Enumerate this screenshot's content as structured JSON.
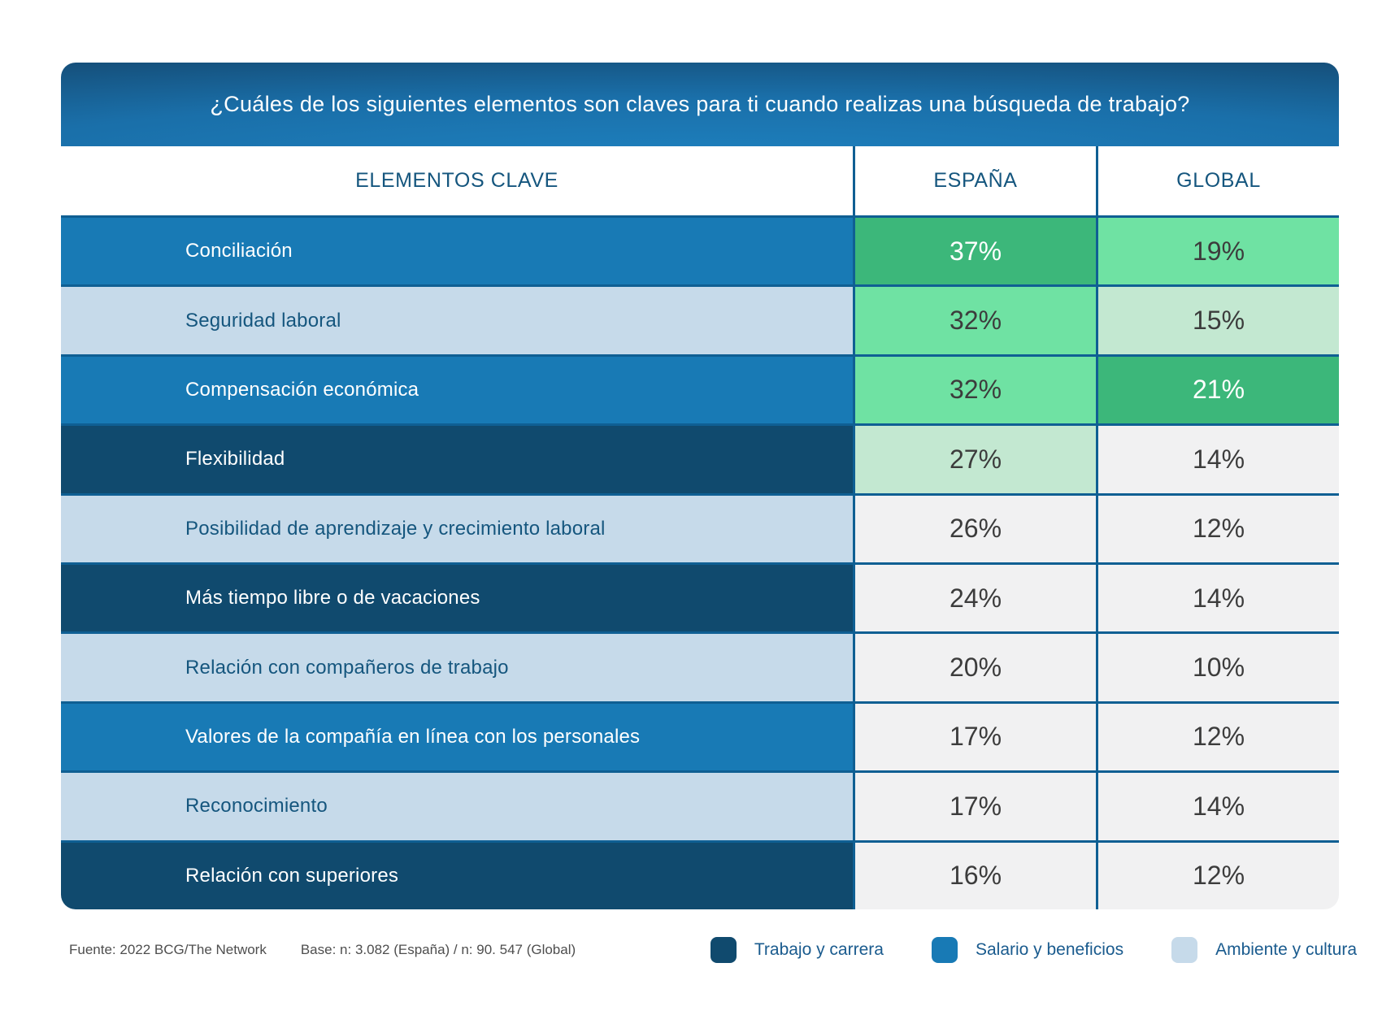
{
  "header": {
    "title": "¿Cuáles de los siguientes elementos son claves para ti cuando realizas una búsqueda de trabajo?"
  },
  "table": {
    "columns": [
      "ELEMENTOS CLAVE",
      "ESPAÑA",
      "GLOBAL"
    ],
    "rows": [
      {
        "label": "Conciliación",
        "category": "salario",
        "spain": {
          "text": "37%",
          "shade": "green-dark"
        },
        "global": {
          "text": "19%",
          "shade": "green-mid"
        }
      },
      {
        "label": "Seguridad laboral",
        "category": "ambiente",
        "spain": {
          "text": "32%",
          "shade": "green-mid"
        },
        "global": {
          "text": "15%",
          "shade": "green-pale"
        }
      },
      {
        "label": "Compensación económica",
        "category": "salario",
        "spain": {
          "text": "32%",
          "shade": "green-mid"
        },
        "global": {
          "text": "21%",
          "shade": "green-dark"
        }
      },
      {
        "label": "Flexibilidad",
        "category": "trabajo",
        "spain": {
          "text": "27%",
          "shade": "green-pale"
        },
        "global": {
          "text": "14%",
          "shade": "gray"
        }
      },
      {
        "label": "Posibilidad de aprendizaje y crecimiento laboral",
        "category": "ambiente",
        "spain": {
          "text": "26%",
          "shade": "gray"
        },
        "global": {
          "text": "12%",
          "shade": "gray"
        }
      },
      {
        "label": "Más tiempo libre o de vacaciones",
        "category": "trabajo",
        "spain": {
          "text": "24%",
          "shade": "gray"
        },
        "global": {
          "text": "14%",
          "shade": "gray"
        }
      },
      {
        "label": "Relación con compañeros de trabajo",
        "category": "ambiente",
        "spain": {
          "text": "20%",
          "shade": "gray"
        },
        "global": {
          "text": "10%",
          "shade": "gray"
        }
      },
      {
        "label": "Valores de la compañía en línea con los personales",
        "category": "salario",
        "spain": {
          "text": "17%",
          "shade": "gray"
        },
        "global": {
          "text": "12%",
          "shade": "gray"
        }
      },
      {
        "label": "Reconocimiento",
        "category": "ambiente",
        "spain": {
          "text": "17%",
          "shade": "gray"
        },
        "global": {
          "text": "14%",
          "shade": "gray"
        }
      },
      {
        "label": "Relación con superiores",
        "category": "trabajo",
        "spain": {
          "text": "16%",
          "shade": "gray"
        },
        "global": {
          "text": "12%",
          "shade": "gray"
        }
      }
    ]
  },
  "footer": {
    "source": "Fuente: 2022 BCG/The Network",
    "base": "Base: n: 3.082 (España) / n: 90. 547 (Global)"
  },
  "legend": {
    "items": [
      {
        "label": "Trabajo y carrera",
        "category": "trabajo",
        "color": "#104A6E"
      },
      {
        "label": "Salario y beneficios",
        "category": "salario",
        "color": "#187AB5"
      },
      {
        "label": "Ambiente y cultura",
        "category": "ambiente",
        "color": "#C6DAEA"
      }
    ]
  },
  "colors": {
    "grid_line": "#0F5F93",
    "category_trabajo": "#104A6E",
    "category_salario": "#187AB5",
    "category_ambiente": "#C6DAEA",
    "value_green_dark": "#3CB77A",
    "value_green_mid": "#6FE2A3",
    "value_green_pale": "#C3E8D1",
    "value_gray": "#F1F1F2",
    "header_text": "#15567E"
  },
  "chart_data": {
    "type": "table",
    "title": "¿Cuáles de los siguientes elementos son claves para ti cuando realizas una búsqueda de trabajo?",
    "categories": [
      "Conciliación",
      "Seguridad laboral",
      "Compensación económica",
      "Flexibilidad",
      "Posibilidad de aprendizaje y crecimiento laboral",
      "Más tiempo libre o de vacaciones",
      "Relación con compañeros de trabajo",
      "Valores de la compañía en línea con los personales",
      "Reconocimiento",
      "Relación con superiores"
    ],
    "series": [
      {
        "name": "España",
        "values": [
          37,
          32,
          32,
          27,
          26,
          24,
          20,
          17,
          17,
          16
        ]
      },
      {
        "name": "Global",
        "values": [
          19,
          15,
          21,
          14,
          12,
          14,
          10,
          12,
          14,
          12
        ]
      }
    ],
    "units": "%",
    "row_category_legend": [
      "Trabajo y carrera",
      "Salario y beneficios",
      "Ambiente y cultura"
    ],
    "row_categories": [
      "Salario y beneficios",
      "Ambiente y cultura",
      "Salario y beneficios",
      "Trabajo y carrera",
      "Ambiente y cultura",
      "Trabajo y carrera",
      "Ambiente y cultura",
      "Salario y beneficios",
      "Ambiente y cultura",
      "Trabajo y carrera"
    ],
    "source": "2022 BCG/The Network",
    "base": "n: 3.082 (España) / n: 90. 547 (Global)",
    "legend_position": "bottom"
  }
}
